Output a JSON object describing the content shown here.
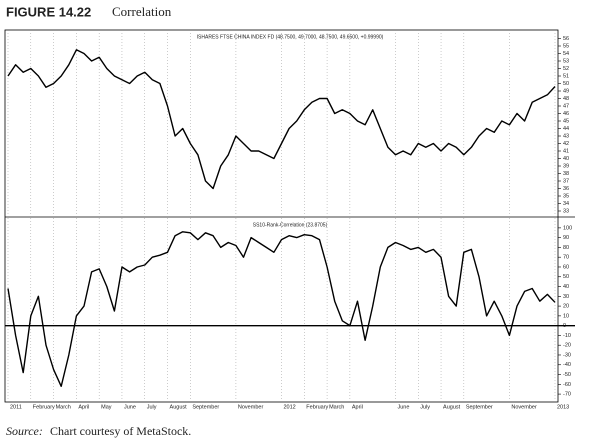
{
  "figure_label": "FIGURE 14.22",
  "title": "Correlation",
  "source_label": "Source:",
  "source": "Chart courtesy of MetaStock.",
  "chart_data": [
    {
      "type": "line",
      "title": "ISHARES FTSE CHINA INDEX FD (48.7500, 49.7000, 48.7500, 49.6500, +0.99990)",
      "color": "#000000",
      "categories": [
        "2011",
        null,
        null,
        "February",
        null,
        null,
        "March",
        null,
        null,
        "April",
        null,
        null,
        "May",
        null,
        null,
        "June",
        null,
        null,
        "July",
        null,
        null,
        "August",
        null,
        null,
        "September",
        null,
        null,
        null,
        null,
        null,
        "November",
        null,
        null,
        null,
        null,
        null,
        "2012",
        null,
        null,
        "February",
        null,
        null,
        "March",
        null,
        null,
        "April",
        null,
        null,
        null,
        null,
        null,
        "June",
        null,
        null,
        "July",
        null,
        null,
        "August",
        null,
        null,
        "September",
        null,
        null,
        null,
        null,
        null,
        "November",
        null,
        null,
        null,
        null,
        null,
        "2013"
      ],
      "values": [
        51,
        52.5,
        51.5,
        52,
        51,
        49.5,
        50,
        51,
        52.5,
        54.5,
        54,
        53,
        53.5,
        52,
        51,
        50.5,
        50,
        51,
        51.5,
        50.5,
        50,
        47,
        43,
        44,
        42,
        40.5,
        37,
        36,
        39,
        40.5,
        43,
        42,
        41,
        41,
        40.5,
        40,
        42,
        44,
        45,
        46.5,
        47.5,
        48,
        48,
        46,
        46.5,
        46,
        45,
        44.5,
        46.5,
        44,
        41.5,
        40.5,
        41,
        40.5,
        42,
        41.5,
        42,
        41,
        42,
        41.5,
        40.5,
        41.5,
        43,
        44,
        43.5,
        45,
        44.5,
        46,
        45,
        47.5,
        48,
        48.5,
        49.6
      ],
      "ylim": [
        32.6,
        56.6
      ],
      "yticks": [
        33,
        34,
        35,
        36,
        37,
        38,
        39,
        40,
        41,
        42,
        43,
        44,
        45,
        46,
        47,
        48,
        49,
        50,
        51,
        52,
        53,
        54,
        55,
        56
      ],
      "grid": true
    },
    {
      "type": "line",
      "title": "SS10-Rank-Correlation (23.8705)",
      "color": "#000000",
      "categories": [
        "2011",
        null,
        null,
        "February",
        null,
        null,
        "March",
        null,
        null,
        "April",
        null,
        null,
        "May",
        null,
        null,
        "June",
        null,
        null,
        "July",
        null,
        null,
        "August",
        null,
        null,
        "September",
        null,
        null,
        null,
        null,
        null,
        "November",
        null,
        null,
        null,
        null,
        null,
        "2012",
        null,
        null,
        "February",
        null,
        null,
        "March",
        null,
        null,
        "April",
        null,
        null,
        null,
        null,
        null,
        "June",
        null,
        null,
        "July",
        null,
        null,
        "August",
        null,
        null,
        "September",
        null,
        null,
        null,
        null,
        null,
        "November",
        null,
        null,
        null,
        null,
        null,
        "2013"
      ],
      "values": [
        38,
        -10,
        -48,
        10,
        30,
        -20,
        -45,
        -62,
        -30,
        10,
        20,
        55,
        58,
        40,
        15,
        60,
        55,
        60,
        62,
        70,
        72,
        75,
        92,
        96,
        95,
        88,
        95,
        92,
        80,
        85,
        82,
        70,
        90,
        85,
        80,
        75,
        88,
        92,
        90,
        93,
        92,
        88,
        60,
        25,
        5,
        0,
        25,
        -15,
        20,
        60,
        80,
        85,
        82,
        78,
        80,
        75,
        78,
        70,
        30,
        20,
        75,
        78,
        50,
        10,
        25,
        10,
        -10,
        20,
        35,
        38,
        25,
        32,
        23.87
      ],
      "ylim": [
        -74,
        106
      ],
      "yticks": [
        -70,
        -60,
        -50,
        -40,
        -30,
        -20,
        -10,
        0,
        10,
        20,
        30,
        40,
        50,
        60,
        70,
        80,
        90,
        100
      ],
      "grid": true
    }
  ]
}
